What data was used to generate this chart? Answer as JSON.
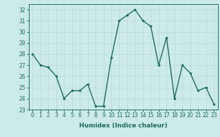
{
  "x": [
    0,
    1,
    2,
    3,
    4,
    5,
    6,
    7,
    8,
    9,
    10,
    11,
    12,
    13,
    14,
    15,
    16,
    17,
    18,
    19,
    20,
    21,
    22,
    23
  ],
  "y": [
    28,
    27,
    26.8,
    26,
    24,
    24.7,
    24.7,
    25.3,
    23.3,
    23.3,
    27.7,
    31,
    31.5,
    32,
    31,
    30.5,
    27,
    29.5,
    24,
    27,
    26.3,
    24.7,
    25,
    23.5
  ],
  "line_color": "#1a6b5a",
  "marker": "o",
  "marker_size": 2,
  "line_width": 1.0,
  "xlabel": "Humidex (Indice chaleur)",
  "xlim": [
    -0.5,
    23.5
  ],
  "ylim": [
    23,
    32.5
  ],
  "yticks": [
    23,
    24,
    25,
    26,
    27,
    28,
    29,
    30,
    31,
    32
  ],
  "xticks": [
    0,
    1,
    2,
    3,
    4,
    5,
    6,
    7,
    8,
    9,
    10,
    11,
    12,
    13,
    14,
    15,
    16,
    17,
    18,
    19,
    20,
    21,
    22,
    23
  ],
  "bg_color": "#cceae7",
  "grid_color": "#b8d8d5",
  "tick_fontsize": 5.5,
  "label_fontsize": 6.5
}
